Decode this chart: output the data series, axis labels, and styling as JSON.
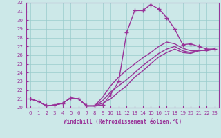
{
  "xlabel": "Windchill (Refroidissement éolien,°C)",
  "bg_color": "#cce8e8",
  "grid_color": "#99cccc",
  "line_color": "#993399",
  "xlim": [
    -0.5,
    23.5
  ],
  "ylim": [
    20,
    32
  ],
  "yticks": [
    20,
    21,
    22,
    23,
    24,
    25,
    26,
    27,
    28,
    29,
    30,
    31,
    32
  ],
  "xticks": [
    0,
    1,
    2,
    3,
    4,
    5,
    6,
    7,
    8,
    9,
    10,
    11,
    12,
    13,
    14,
    15,
    16,
    17,
    18,
    19,
    20,
    21,
    22,
    23
  ],
  "lines": [
    {
      "x": [
        0,
        1,
        2,
        3,
        4,
        5,
        6,
        7,
        8,
        9,
        10,
        11,
        12,
        13,
        14,
        15,
        16,
        17,
        18,
        19,
        20,
        21,
        22,
        23
      ],
      "y": [
        21.0,
        20.7,
        20.2,
        20.3,
        20.5,
        21.1,
        21.0,
        20.2,
        20.2,
        20.3,
        21.5,
        23.0,
        28.6,
        31.1,
        31.1,
        31.8,
        31.3,
        30.3,
        29.0,
        27.2,
        27.3,
        27.0,
        26.7,
        26.7
      ],
      "marker": "+",
      "markersize": 4.0,
      "linewidth": 1.0,
      "has_marker": true
    },
    {
      "x": [
        0,
        1,
        2,
        3,
        4,
        5,
        6,
        7,
        8,
        9,
        10,
        11,
        12,
        13,
        14,
        15,
        16,
        17,
        18,
        19,
        20,
        21,
        22,
        23
      ],
      "y": [
        21.0,
        20.7,
        20.2,
        20.3,
        20.5,
        21.1,
        21.0,
        20.2,
        20.2,
        20.8,
        21.8,
        22.5,
        23.2,
        24.0,
        24.8,
        25.5,
        26.2,
        26.7,
        27.0,
        26.5,
        26.3,
        26.6,
        26.5,
        26.7
      ],
      "marker": null,
      "markersize": 0,
      "linewidth": 1.0,
      "has_marker": false
    },
    {
      "x": [
        0,
        1,
        2,
        3,
        4,
        5,
        6,
        7,
        8,
        9,
        10,
        11,
        12,
        13,
        14,
        15,
        16,
        17,
        18,
        19,
        20,
        21,
        22,
        23
      ],
      "y": [
        21.0,
        20.7,
        20.2,
        20.3,
        20.5,
        21.1,
        21.0,
        20.2,
        20.2,
        21.2,
        22.5,
        23.5,
        24.3,
        25.0,
        25.7,
        26.3,
        27.0,
        27.5,
        27.3,
        26.8,
        26.5,
        26.5,
        26.6,
        26.7
      ],
      "marker": null,
      "markersize": 0,
      "linewidth": 1.0,
      "has_marker": false
    },
    {
      "x": [
        0,
        1,
        2,
        3,
        4,
        5,
        6,
        7,
        8,
        9,
        10,
        11,
        12,
        13,
        14,
        15,
        16,
        17,
        18,
        19,
        20,
        21,
        22,
        23
      ],
      "y": [
        21.0,
        20.7,
        20.2,
        20.3,
        20.5,
        21.1,
        21.0,
        20.2,
        20.2,
        20.5,
        21.0,
        21.8,
        22.5,
        23.5,
        24.2,
        25.0,
        25.8,
        26.3,
        26.7,
        26.3,
        26.2,
        26.5,
        26.6,
        26.7
      ],
      "marker": null,
      "markersize": 0,
      "linewidth": 1.0,
      "has_marker": false
    }
  ]
}
